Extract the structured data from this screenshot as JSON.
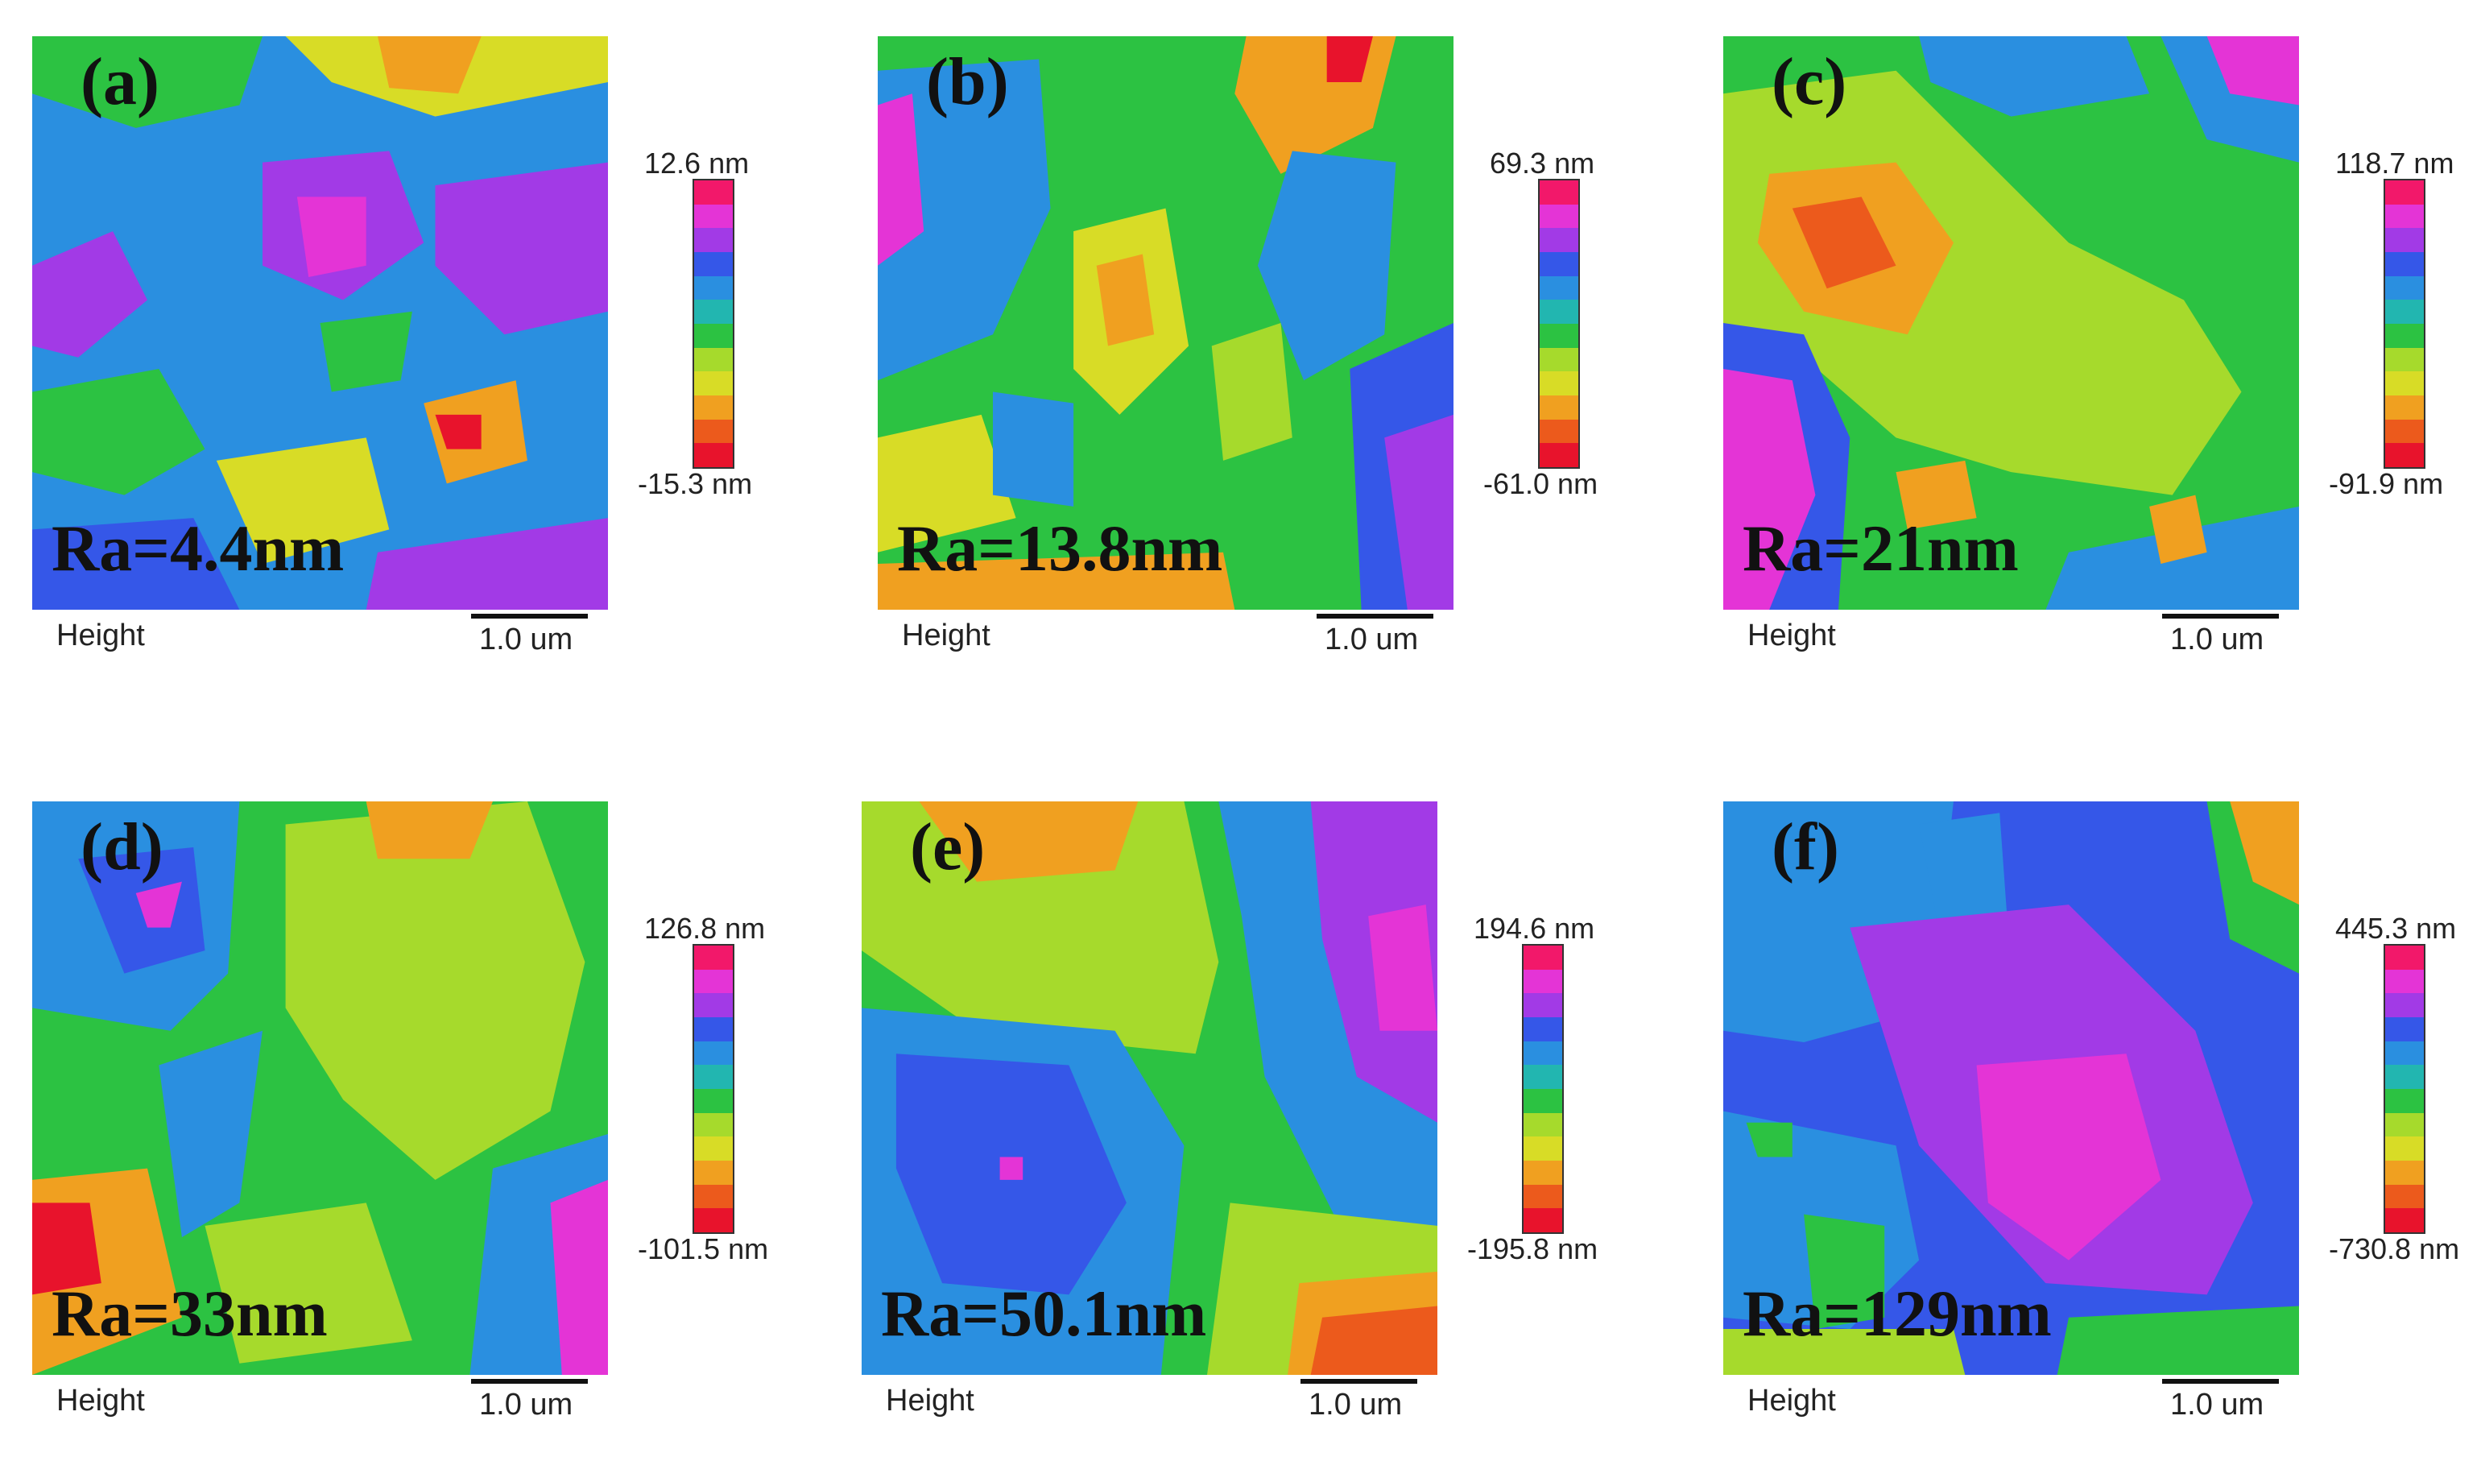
{
  "palette": [
    "#e8132c",
    "#ec5a1c",
    "#f0a020",
    "#d8dc26",
    "#a6da2c",
    "#2cc242",
    "#22b6b0",
    "#2a8fe0",
    "#3557e8",
    "#a23ae6",
    "#e434d6",
    "#f2186a"
  ],
  "panels": [
    {
      "letter": "(a)",
      "ra": "Ra=4.4nm",
      "max": "12.6 nm",
      "min": "-15.3 nm",
      "height": "Height",
      "scale": "1.0 um"
    },
    {
      "letter": "(b)",
      "ra": "Ra=13.8nm",
      "max": "69.3 nm",
      "min": "-61.0 nm",
      "height": "Height",
      "scale": "1.0 um"
    },
    {
      "letter": "(c)",
      "ra": "Ra=21nm",
      "max": "118.7 nm",
      "min": "-91.9 nm",
      "height": "Height",
      "scale": "1.0 um"
    },
    {
      "letter": "(d)",
      "ra": "Ra=33nm",
      "max": "126.8 nm",
      "min": "-101.5 nm",
      "height": "Height",
      "scale": "1.0 um"
    },
    {
      "letter": "(e)",
      "ra": "Ra=50.1nm",
      "max": "194.6 nm",
      "min": "-195.8 nm",
      "height": "Height",
      "scale": "1.0 um"
    },
    {
      "letter": "(f)",
      "ra": "Ra=129nm",
      "max": "445.3 nm",
      "min": "-730.8 nm",
      "height": "Height",
      "scale": "1.0 um"
    }
  ]
}
